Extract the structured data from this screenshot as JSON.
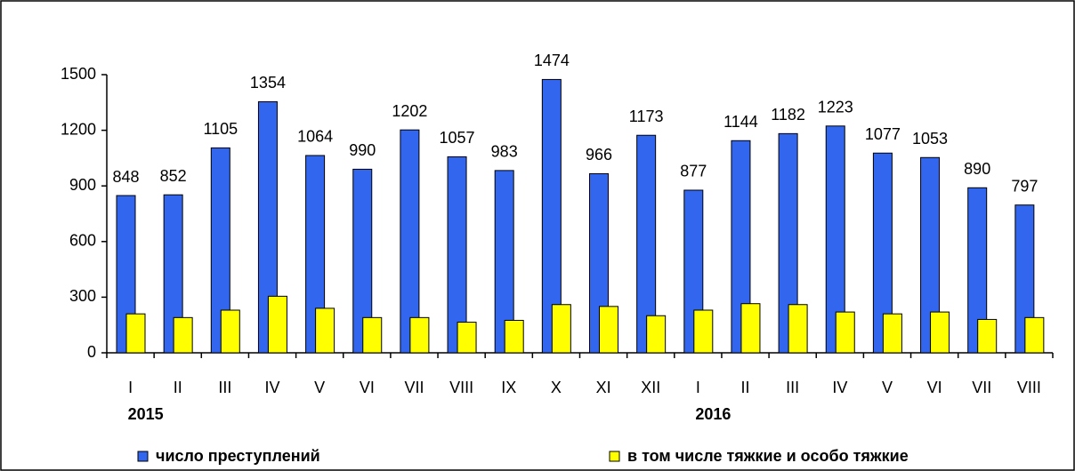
{
  "chart_data": {
    "type": "bar",
    "categories": [
      "I",
      "II",
      "III",
      "IV",
      "V",
      "VI",
      "VII",
      "VIII",
      "IX",
      "X",
      "XI",
      "XII",
      "I",
      "II",
      "III",
      "IV",
      "V",
      "VI",
      "VII",
      "VIII"
    ],
    "x_groups": [
      "2015",
      null,
      null,
      null,
      null,
      null,
      null,
      null,
      null,
      null,
      null,
      null,
      "2016",
      null,
      null,
      null,
      null,
      null,
      null,
      null
    ],
    "series": [
      {
        "name": "число преступлений",
        "color": "#3366ee",
        "values": [
          848,
          852,
          1105,
          1354,
          1064,
          990,
          1202,
          1057,
          983,
          1474,
          966,
          1173,
          877,
          1144,
          1182,
          1223,
          1077,
          1053,
          890,
          797
        ],
        "show_labels": true
      },
      {
        "name": "в том числе тяжкие и особо тяжкие",
        "color": "#ffff00",
        "values": [
          210,
          190,
          230,
          305,
          240,
          190,
          190,
          165,
          175,
          260,
          250,
          200,
          230,
          265,
          260,
          220,
          210,
          220,
          180,
          190
        ],
        "show_labels": false
      }
    ],
    "ylim": [
      0,
      1500
    ],
    "yticks": [
      0,
      300,
      600,
      900,
      1200,
      1500
    ],
    "grid": false
  }
}
